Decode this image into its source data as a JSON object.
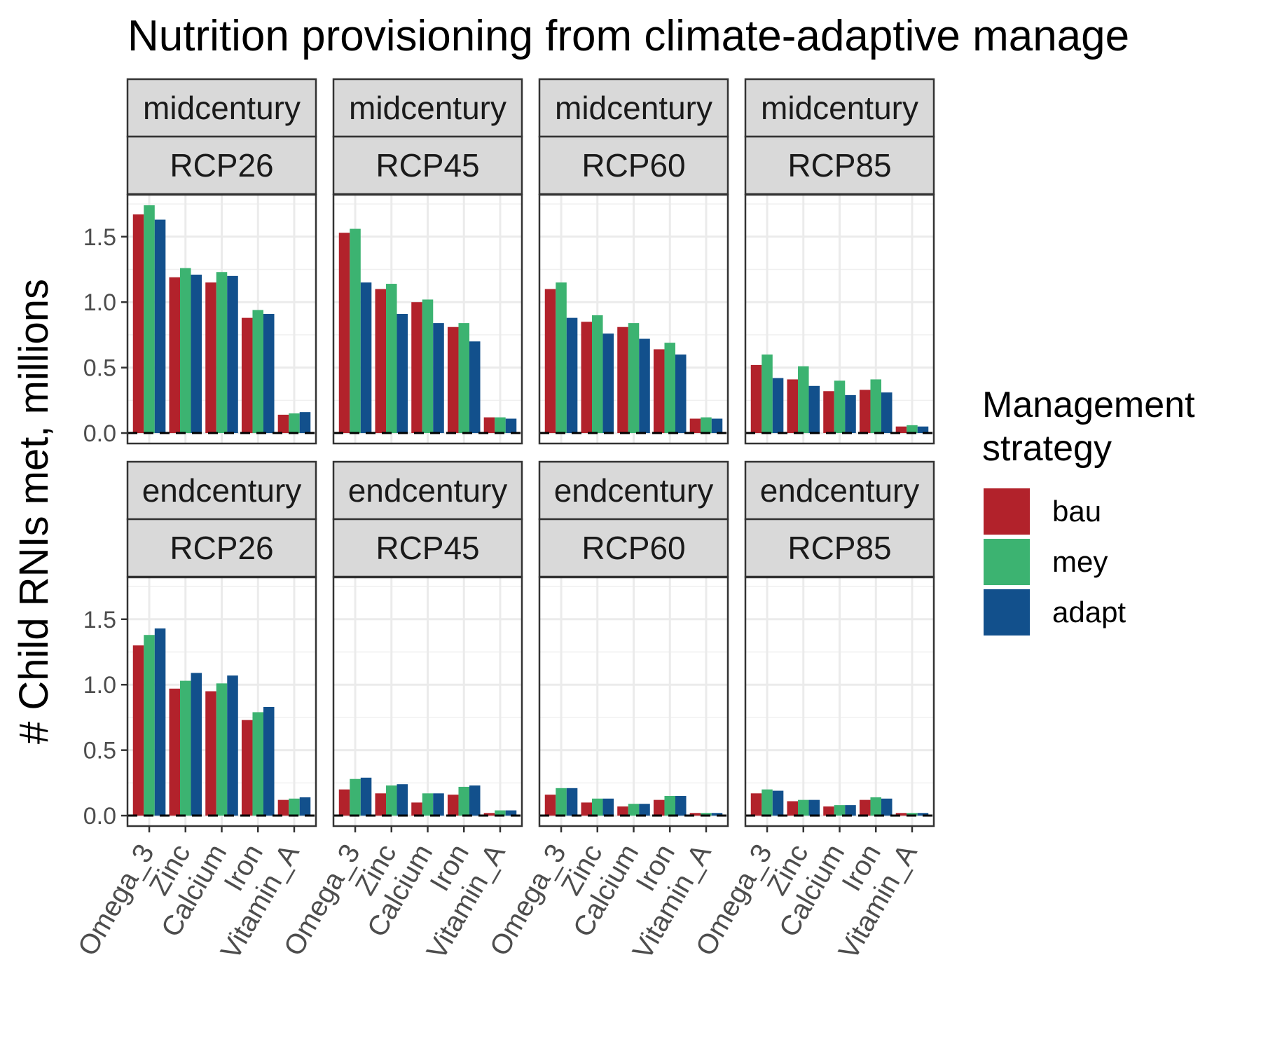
{
  "chart_data": {
    "type": "bar",
    "title": "Nutrition provisioning from climate-adaptive manage",
    "xlabel": "",
    "ylabel": "# Child RNIs met, millions",
    "ylim": [
      -0.08,
      1.82
    ],
    "yticks": [
      "0.0",
      "0.5",
      "1.0",
      "1.5"
    ],
    "categories": [
      "Omega_3",
      "Zinc",
      "Calcium",
      "Iron",
      "Vitamin_A"
    ],
    "legend": {
      "title_lines": [
        "Management",
        "strategy"
      ],
      "position": "right",
      "items": [
        {
          "name": "bau",
          "color": "#B2222B"
        },
        {
          "name": "mey",
          "color": "#3CB371"
        },
        {
          "name": "adapt",
          "color": "#12508C"
        }
      ]
    },
    "grid": true,
    "reference_line": {
      "y": 0,
      "style": "dashed"
    },
    "facets": [
      {
        "period": "midcentury",
        "rcp": "RCP26",
        "series": {
          "bau": [
            1.67,
            1.19,
            1.15,
            0.88,
            0.14
          ],
          "mey": [
            1.74,
            1.26,
            1.23,
            0.94,
            0.15
          ],
          "adapt": [
            1.63,
            1.21,
            1.2,
            0.91,
            0.16
          ]
        }
      },
      {
        "period": "midcentury",
        "rcp": "RCP45",
        "series": {
          "bau": [
            1.53,
            1.1,
            1.0,
            0.81,
            0.12
          ],
          "mey": [
            1.56,
            1.14,
            1.02,
            0.84,
            0.12
          ],
          "adapt": [
            1.15,
            0.91,
            0.84,
            0.7,
            0.11
          ]
        }
      },
      {
        "period": "midcentury",
        "rcp": "RCP60",
        "series": {
          "bau": [
            1.1,
            0.85,
            0.81,
            0.64,
            0.11
          ],
          "mey": [
            1.15,
            0.9,
            0.84,
            0.69,
            0.12
          ],
          "adapt": [
            0.88,
            0.76,
            0.72,
            0.6,
            0.11
          ]
        }
      },
      {
        "period": "midcentury",
        "rcp": "RCP85",
        "series": {
          "bau": [
            0.52,
            0.41,
            0.32,
            0.33,
            0.05
          ],
          "mey": [
            0.6,
            0.51,
            0.4,
            0.41,
            0.06
          ],
          "adapt": [
            0.42,
            0.36,
            0.29,
            0.31,
            0.05
          ]
        }
      },
      {
        "period": "endcentury",
        "rcp": "RCP26",
        "series": {
          "bau": [
            1.3,
            0.97,
            0.95,
            0.73,
            0.12
          ],
          "mey": [
            1.38,
            1.03,
            1.01,
            0.79,
            0.13
          ],
          "adapt": [
            1.43,
            1.09,
            1.07,
            0.83,
            0.14
          ]
        }
      },
      {
        "period": "endcentury",
        "rcp": "RCP45",
        "series": {
          "bau": [
            0.2,
            0.17,
            0.1,
            0.16,
            0.02
          ],
          "mey": [
            0.28,
            0.23,
            0.17,
            0.22,
            0.04
          ],
          "adapt": [
            0.29,
            0.24,
            0.17,
            0.23,
            0.04
          ]
        }
      },
      {
        "period": "endcentury",
        "rcp": "RCP60",
        "series": {
          "bau": [
            0.16,
            0.1,
            0.07,
            0.12,
            0.02
          ],
          "mey": [
            0.21,
            0.13,
            0.09,
            0.15,
            0.02
          ],
          "adapt": [
            0.21,
            0.13,
            0.09,
            0.15,
            0.02
          ]
        }
      },
      {
        "period": "endcentury",
        "rcp": "RCP85",
        "series": {
          "bau": [
            0.17,
            0.11,
            0.07,
            0.12,
            0.02
          ],
          "mey": [
            0.2,
            0.12,
            0.08,
            0.14,
            0.02
          ],
          "adapt": [
            0.19,
            0.12,
            0.08,
            0.13,
            0.02
          ]
        }
      }
    ]
  }
}
